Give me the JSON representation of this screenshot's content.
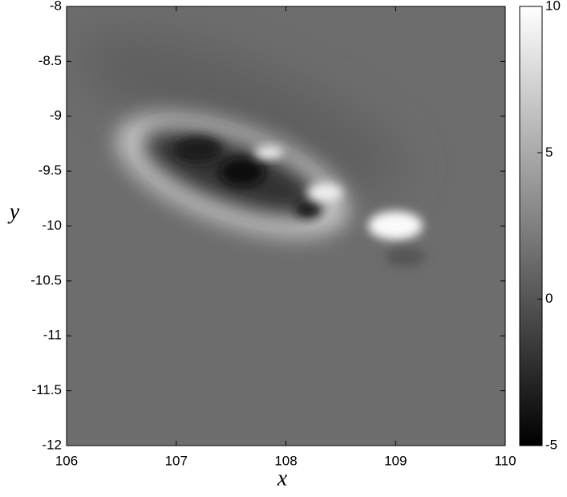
{
  "chart_data": {
    "type": "heatmap",
    "xlabel": "x",
    "ylabel": "y",
    "xlim": [
      106,
      110
    ],
    "xticks": [
      106,
      107,
      108,
      109,
      110
    ],
    "ylim": [
      -12,
      -8
    ],
    "yticks": [
      -8,
      -8.5,
      -9,
      -9.5,
      -10,
      -10.5,
      -11,
      -11.5,
      -12
    ],
    "colorbar": {
      "lim": [
        -5,
        10
      ],
      "ticks": [
        10,
        5,
        0,
        -5
      ]
    }
  }
}
